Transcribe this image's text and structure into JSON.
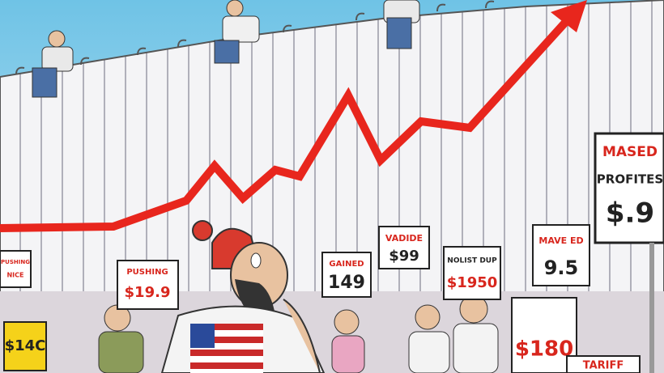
{
  "signs": [
    {
      "lines": [
        "MASED",
        "PROFITES",
        "$.9"
      ]
    },
    {
      "lines": [
        "VADIDE",
        "$99"
      ]
    },
    {
      "lines": [
        "GAINED",
        "149"
      ]
    },
    {
      "lines": [
        "NOLIST DUP",
        "$1950"
      ]
    },
    {
      "lines": [
        "MAVE ED",
        "9.5"
      ]
    },
    {
      "lines": [
        "PUSHING",
        "$19.9"
      ]
    },
    {
      "lines": [
        "PUSHING",
        "NICE"
      ]
    },
    {
      "lines": [
        "$14C"
      ]
    },
    {
      "lines": [
        "$180"
      ]
    },
    {
      "lines": [
        "TARIFF"
      ]
    }
  ]
}
